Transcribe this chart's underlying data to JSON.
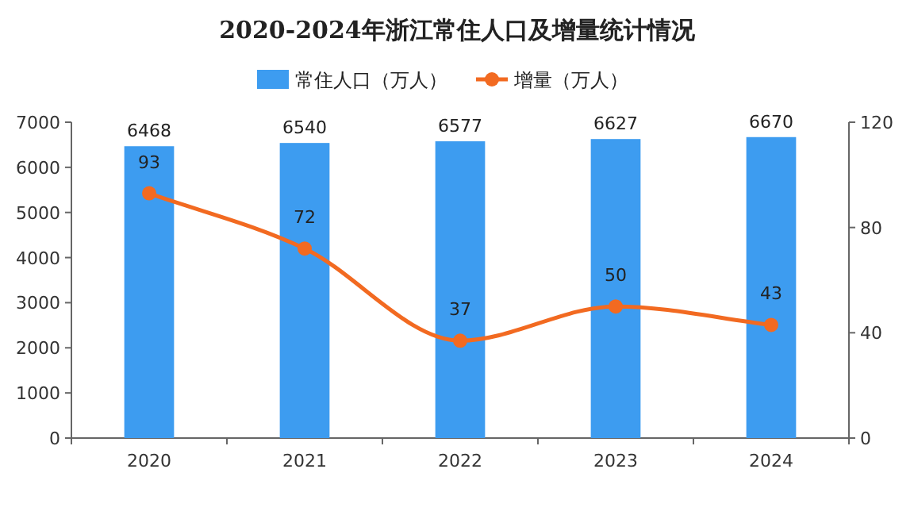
{
  "chart_data": {
    "type": "bar",
    "title": "2020-2024年浙江常住人口及增量统计情况",
    "categories": [
      "2020",
      "2021",
      "2022",
      "2023",
      "2024"
    ],
    "series": [
      {
        "name": "常住人口（万人）",
        "color": "#3d9cf0",
        "values": [
          6468,
          6540,
          6577,
          6627,
          6670
        ]
      },
      {
        "name": "增量（万人）",
        "type": "line",
        "axis": "y2",
        "color": "#f26a21",
        "marker": "circle",
        "values": [
          93,
          72,
          37,
          50,
          43
        ]
      }
    ],
    "ylim": [
      0,
      7000
    ],
    "yticks": [
      0,
      1000,
      2000,
      3000,
      4000,
      5000,
      6000,
      7000
    ],
    "y2lim": [
      0,
      120
    ],
    "y2ticks": [
      0,
      40,
      80,
      120
    ],
    "legend": "top",
    "data_labels": true
  }
}
